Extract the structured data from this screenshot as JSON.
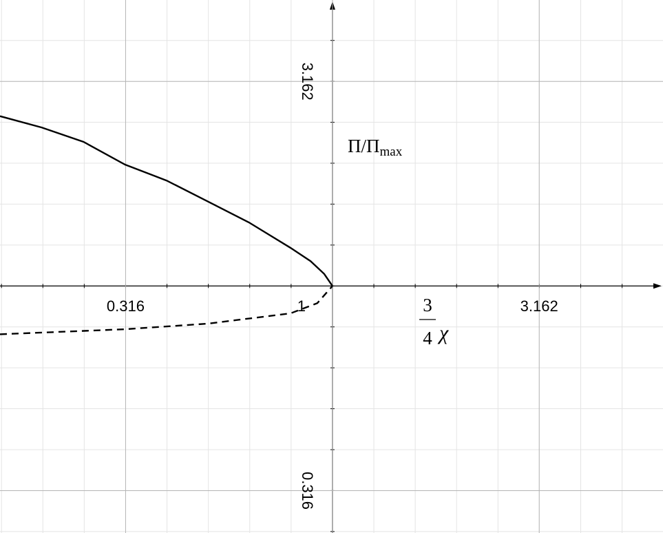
{
  "chart_data": {
    "type": "line",
    "x_scale": "log",
    "y_scale": "log",
    "grid": true,
    "axis_origin": [
      1,
      1
    ],
    "xlabel": {
      "numerator": "3",
      "denominator": "4",
      "symbol": "χ"
    },
    "ylabel": {
      "text": "Π/Π",
      "subscript": "max"
    },
    "xlim": [
      0.157,
      6.3
    ],
    "ylim": [
      0.249,
      5.0
    ],
    "xticks": [
      0.316,
      1,
      3.162
    ],
    "yticks": [
      0.316,
      3.162
    ],
    "series": [
      {
        "color": "#000000",
        "style": "solid",
        "x": [
          0.157,
          0.198,
          0.25,
          0.315,
          0.397,
          0.499,
          0.628,
          0.791,
          0.885,
          0.955,
          1
        ],
        "values": [
          2.6,
          2.44,
          2.25,
          1.98,
          1.81,
          1.61,
          1.43,
          1.24,
          1.15,
          1.07,
          1
        ]
      },
      {
        "color": "#000000",
        "style": "dashed",
        "x": [
          0.157,
          0.315,
          0.499,
          0.791,
          0.919,
          1
        ],
        "values": [
          0.762,
          0.784,
          0.809,
          0.857,
          0.908,
          1
        ]
      }
    ]
  }
}
